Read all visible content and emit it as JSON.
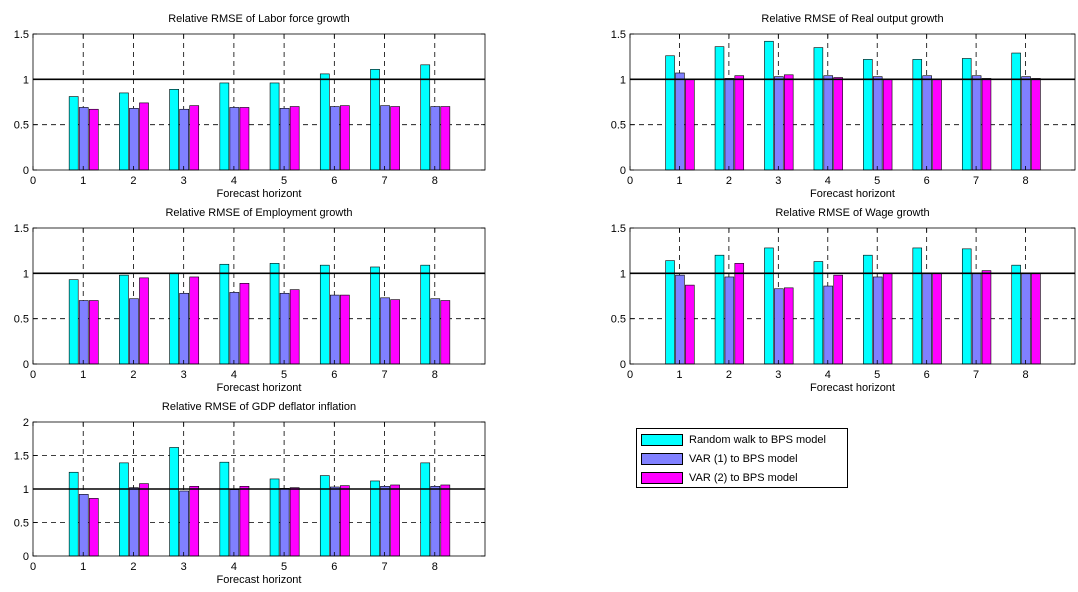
{
  "colors": {
    "series": [
      "#00ffff",
      "#8080ff",
      "#ff00ff"
    ],
    "reference_line": "#000000",
    "grid": "#000000"
  },
  "legend": {
    "placement": "bottom-right",
    "entries": [
      "Random walk to BPS model",
      "VAR (1) to BPS model",
      "VAR (2) to BPS model"
    ]
  },
  "chart_data": [
    {
      "type": "bar",
      "title": "Relative RMSE of Labor force growth",
      "xlabel": "Forecast horizont",
      "ylabel": "",
      "categories": [
        "1",
        "2",
        "3",
        "4",
        "5",
        "6",
        "7",
        "8"
      ],
      "xlim": [
        0,
        9
      ],
      "ylim": [
        0,
        1.5
      ],
      "xticks": [
        "0",
        "1",
        "2",
        "3",
        "4",
        "5",
        "6",
        "7",
        "8"
      ],
      "yticks": [
        "0",
        "0.5",
        "1",
        "1.5"
      ],
      "reference_line": 1,
      "grid": true,
      "series": [
        {
          "name": "Random walk to BPS model",
          "values": [
            0.81,
            0.85,
            0.89,
            0.96,
            0.96,
            1.06,
            1.11,
            1.16
          ]
        },
        {
          "name": "VAR (1) to BPS model",
          "values": [
            0.69,
            0.68,
            0.67,
            0.69,
            0.68,
            0.7,
            0.71,
            0.7
          ]
        },
        {
          "name": "VAR (2) to BPS model",
          "values": [
            0.67,
            0.74,
            0.71,
            0.69,
            0.7,
            0.71,
            0.7,
            0.7
          ]
        }
      ]
    },
    {
      "type": "bar",
      "title": "Relative RMSE of  Real output growth",
      "xlabel": "Forecast horizont",
      "ylabel": "",
      "categories": [
        "1",
        "2",
        "3",
        "4",
        "5",
        "6",
        "7",
        "8"
      ],
      "xlim": [
        0,
        9
      ],
      "ylim": [
        0,
        1.5
      ],
      "xticks": [
        "0",
        "1",
        "2",
        "3",
        "4",
        "5",
        "6",
        "7",
        "8"
      ],
      "yticks": [
        "0",
        "0.5",
        "1",
        "1.5"
      ],
      "reference_line": 1,
      "grid": true,
      "series": [
        {
          "name": "Random walk to BPS model",
          "values": [
            1.26,
            1.36,
            1.42,
            1.35,
            1.22,
            1.22,
            1.23,
            1.29
          ]
        },
        {
          "name": "VAR (1) to BPS model",
          "values": [
            1.07,
            1.01,
            1.03,
            1.04,
            1.03,
            1.04,
            1.04,
            1.03
          ]
        },
        {
          "name": "VAR (2) to BPS model",
          "values": [
            1.0,
            1.04,
            1.05,
            1.02,
            1.0,
            1.0,
            1.01,
            1.01
          ]
        }
      ]
    },
    {
      "type": "bar",
      "title": "Relative RMSE of Employment growth",
      "xlabel": "Forecast horizont",
      "ylabel": "",
      "categories": [
        "1",
        "2",
        "3",
        "4",
        "5",
        "6",
        "7",
        "8"
      ],
      "xlim": [
        0,
        9
      ],
      "ylim": [
        0,
        1.5
      ],
      "xticks": [
        "0",
        "1",
        "2",
        "3",
        "4",
        "5",
        "6",
        "7",
        "8"
      ],
      "yticks": [
        "0",
        "0.5",
        "1",
        "1.5"
      ],
      "reference_line": 1,
      "grid": true,
      "series": [
        {
          "name": "Random walk to BPS model",
          "values": [
            0.93,
            0.98,
            1.0,
            1.1,
            1.11,
            1.09,
            1.07,
            1.09
          ]
        },
        {
          "name": "VAR (1) to BPS model",
          "values": [
            0.7,
            0.72,
            0.78,
            0.79,
            0.78,
            0.76,
            0.73,
            0.72
          ]
        },
        {
          "name": "VAR (2) to BPS model",
          "values": [
            0.7,
            0.95,
            0.96,
            0.89,
            0.82,
            0.76,
            0.71,
            0.7
          ]
        }
      ]
    },
    {
      "type": "bar",
      "title": "Relative RMSE of Wage growth",
      "xlabel": "Forecast horizont",
      "ylabel": "",
      "categories": [
        "1",
        "2",
        "3",
        "4",
        "5",
        "6",
        "7",
        "8"
      ],
      "xlim": [
        0,
        9
      ],
      "ylim": [
        0,
        1.5
      ],
      "xticks": [
        "0",
        "1",
        "2",
        "3",
        "4",
        "5",
        "6",
        "7",
        "8"
      ],
      "yticks": [
        "0",
        "0.5",
        "1",
        "1.5"
      ],
      "reference_line": 1,
      "grid": true,
      "series": [
        {
          "name": "Random walk to BPS model",
          "values": [
            1.14,
            1.2,
            1.28,
            1.13,
            1.2,
            1.28,
            1.27,
            1.09
          ]
        },
        {
          "name": "VAR (1) to BPS model",
          "values": [
            0.98,
            0.96,
            0.83,
            0.86,
            0.96,
            1.0,
            1.0,
            1.0
          ]
        },
        {
          "name": "VAR (2) to BPS model",
          "values": [
            0.87,
            1.11,
            0.84,
            0.98,
            1.0,
            1.0,
            1.03,
            1.0
          ]
        }
      ]
    },
    {
      "type": "bar",
      "title": "Relative RMSE of GDP deflator inflation",
      "xlabel": "Forecast horizont",
      "ylabel": "",
      "categories": [
        "1",
        "2",
        "3",
        "4",
        "5",
        "6",
        "7",
        "8"
      ],
      "xlim": [
        0,
        9
      ],
      "ylim": [
        0,
        2
      ],
      "xticks": [
        "0",
        "1",
        "2",
        "3",
        "4",
        "5",
        "6",
        "7",
        "8"
      ],
      "yticks": [
        "0",
        "0.5",
        "1",
        "1.5",
        "2"
      ],
      "reference_line": 1,
      "grid": true,
      "series": [
        {
          "name": "Random walk to BPS model",
          "values": [
            1.25,
            1.39,
            1.62,
            1.4,
            1.15,
            1.2,
            1.12,
            1.39
          ]
        },
        {
          "name": "VAR (1) to BPS model",
          "values": [
            0.92,
            1.02,
            0.97,
            0.99,
            1.01,
            1.03,
            1.04,
            1.04
          ]
        },
        {
          "name": "VAR (2) to BPS model",
          "values": [
            0.86,
            1.08,
            1.04,
            1.04,
            1.02,
            1.05,
            1.06,
            1.06
          ]
        }
      ]
    }
  ]
}
